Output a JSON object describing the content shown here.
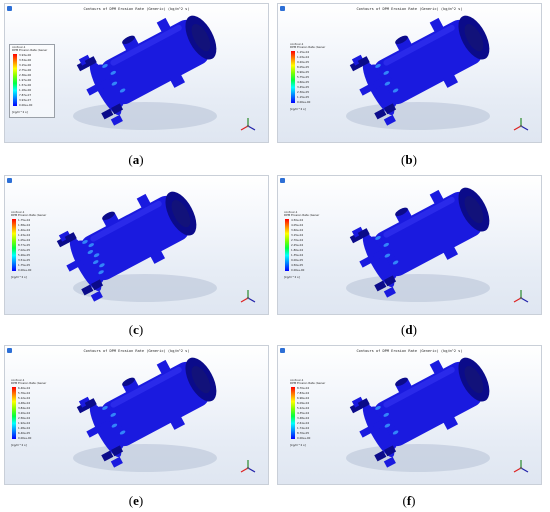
{
  "figure": {
    "panels": [
      {
        "caption_open": "(",
        "caption_letter": "a",
        "caption_close": ")",
        "title": "Contours of DPM Erosion Rate (Generic) (kg/m^2 s)",
        "legend_head": "contour-1\nDPM Erosion Rate (Gener",
        "legend_values": [
          "3.93e-06",
          "3.54e-06",
          "3.15e-06",
          "2.75e-06",
          "2.36e-06",
          "1.97e-06",
          "1.57e-06",
          "1.18e-06",
          "7.87e-07",
          "3.93e-07",
          "0.00e+00"
        ],
        "legend_unit": "[kg/m^2 s]"
      },
      {
        "caption_open": "(",
        "caption_letter": "b",
        "caption_close": ")",
        "title": "Contours of DPM Erosion Rate (Generic) (kg/m^2 s)",
        "legend_head": "contour-1\nDPM Erosion Rate (Gener",
        "legend_values": [
          "1.15e-04",
          "1.03e-04",
          "9.20e-05",
          "8.05e-05",
          "6.90e-05",
          "5.75e-05",
          "4.60e-05",
          "3.45e-05",
          "2.30e-05",
          "1.15e-05",
          "0.00e+00"
        ],
        "legend_unit": "[kg/m^2 s]"
      },
      {
        "caption_open": "(",
        "caption_letter": "c",
        "caption_close": ")",
        "title": "",
        "legend_head": "contour-1\nDPM Erosion Rate (Gener",
        "legend_values": [
          "1.75e-04",
          "1.58e-04",
          "1.40e-04",
          "1.23e-04",
          "1.05e-04",
          "8.77e-05",
          "7.02e-05",
          "5.26e-05",
          "3.51e-05",
          "1.75e-05",
          "0.00e+00"
        ],
        "legend_unit": "[kg/m^2 s]"
      },
      {
        "caption_open": "(",
        "caption_letter": "d",
        "caption_close": ")",
        "title": "",
        "legend_head": "contour-1\nDPM Erosion Rate (Gener",
        "legend_values": [
          "4.50e-04",
          "4.05e-04",
          "3.60e-04",
          "3.15e-04",
          "2.70e-04",
          "2.25e-04",
          "1.80e-04",
          "1.35e-04",
          "9.00e-05",
          "4.50e-05",
          "0.00e+00"
        ],
        "legend_unit": "[kg/m^2 s]"
      },
      {
        "caption_open": "(",
        "caption_letter": "e",
        "caption_close": ")",
        "title": "Contours of DPM Erosion Rate (Generic) (kg/m^2 s)",
        "legend_head": "contour-1\nDPM Erosion Rate (Gener",
        "legend_values": [
          "6.40e-04",
          "5.76e-04",
          "5.12e-04",
          "4.48e-04",
          "3.84e-04",
          "3.20e-04",
          "2.56e-04",
          "1.92e-04",
          "1.28e-04",
          "6.40e-05",
          "0.00e+00"
        ],
        "legend_unit": "[kg/m^2 s]"
      },
      {
        "caption_open": "(",
        "caption_letter": "f",
        "caption_close": ")",
        "title": "Contours of DPM Erosion Rate (Generic) (kg/m^2 s)",
        "legend_head": "contour-1\nDPM Erosion Rate (Gener",
        "legend_values": [
          "8.70e-04",
          "7.83e-04",
          "6.96e-04",
          "6.09e-04",
          "5.22e-04",
          "4.35e-04",
          "3.48e-04",
          "2.61e-04",
          "1.74e-04",
          "8.70e-05",
          "0.00e+00"
        ],
        "legend_unit": "[kg/m^2 s]"
      }
    ],
    "colors": {
      "mesh": "#1a1adf",
      "mesh_dark": "#0b0b8a",
      "erosion_hot": "#3aa0ff",
      "legend_top": "#ff0000",
      "legend_bottom": "#0000ff"
    },
    "icons": [
      "app-icon",
      "axis-triad-icon"
    ]
  }
}
